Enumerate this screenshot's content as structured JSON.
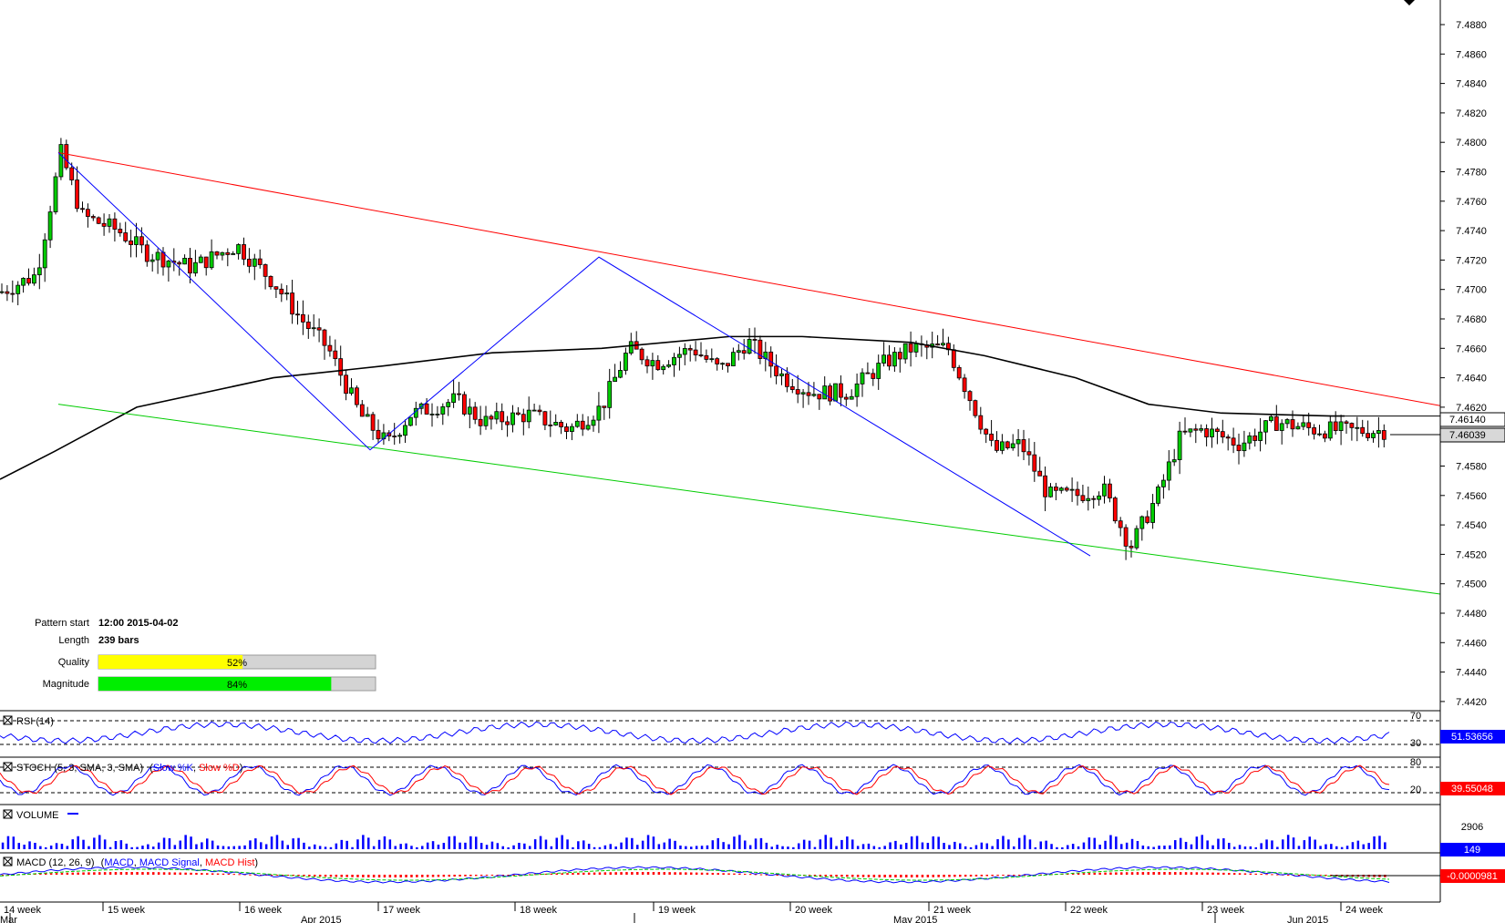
{
  "chart_data": {
    "type": "candlestick",
    "y_axis_labels": [
      "7.4880",
      "7.4860",
      "7.4840",
      "7.4820",
      "7.4800",
      "7.4780",
      "7.4760",
      "7.4740",
      "7.4720",
      "7.4700",
      "7.4680",
      "7.4660",
      "7.4640",
      "7.4620",
      "7.4600",
      "7.4580",
      "7.4560",
      "7.4540",
      "7.4520",
      "7.4500",
      "7.4480",
      "7.4460",
      "7.4440",
      "7.4420"
    ],
    "ylim": [
      7.442,
      7.4895
    ],
    "price_marker_primary": "7.46140",
    "price_marker_current": "7.46039",
    "week_labels": [
      "14 week",
      "15 week",
      "16 week",
      "17 week",
      "18 week",
      "19 week",
      "20 week",
      "21 week",
      "22 week",
      "23 week",
      "24 week"
    ],
    "month_labels": [
      "Mar",
      "Apr 2015",
      "May 2015",
      "Jun 2015"
    ],
    "pattern": {
      "start_label": "Pattern start",
      "start_value": "12:00 2015-04-02",
      "length_label": "Length",
      "length_value": "239 bars",
      "quality_label": "Quality",
      "quality_value": 52,
      "quality_text": "52%",
      "magnitude_label": "Magnitude",
      "magnitude_value": 84,
      "magnitude_text": "84%"
    },
    "trend_lines": {
      "resistance": {
        "color": "#ff0000",
        "from": 7.4793,
        "to": 7.4621
      },
      "support": {
        "color": "#00cc00",
        "from": 7.4622,
        "to": 7.4493
      },
      "zigzag_color": "#0000ff",
      "moving_average_color": "#000000"
    },
    "indicators": {
      "rsi": {
        "title": "RSI (14)",
        "value": "51.53656",
        "levels": [
          "70",
          "30"
        ],
        "color": "#0000ff"
      },
      "stoch": {
        "title_prefix": "STOCH (5, 3, SMA, 3, SMA)",
        "k_label": "Slow %K",
        "d_label": "Slow %D",
        "value": "39.55048",
        "levels": [
          "80",
          "20"
        ],
        "k_color": "#0000ff",
        "d_color": "#ff0000"
      },
      "volume": {
        "title": "VOLUME",
        "value": "149",
        "max_label": "2906",
        "color": "#0000ff"
      },
      "macd": {
        "title_prefix": "MACD (12, 26, 9)",
        "line_label": "MACD",
        "signal_label": "MACD Signal",
        "hist_label": "MACD Hist",
        "value": "-0.0000981",
        "line_color": "#0000ff",
        "signal_color": "#00cc00",
        "hist_color": "#ff0000"
      }
    },
    "candle_colors": {
      "up": "#00cc00",
      "down": "#ff0000",
      "body": "#000000"
    }
  }
}
